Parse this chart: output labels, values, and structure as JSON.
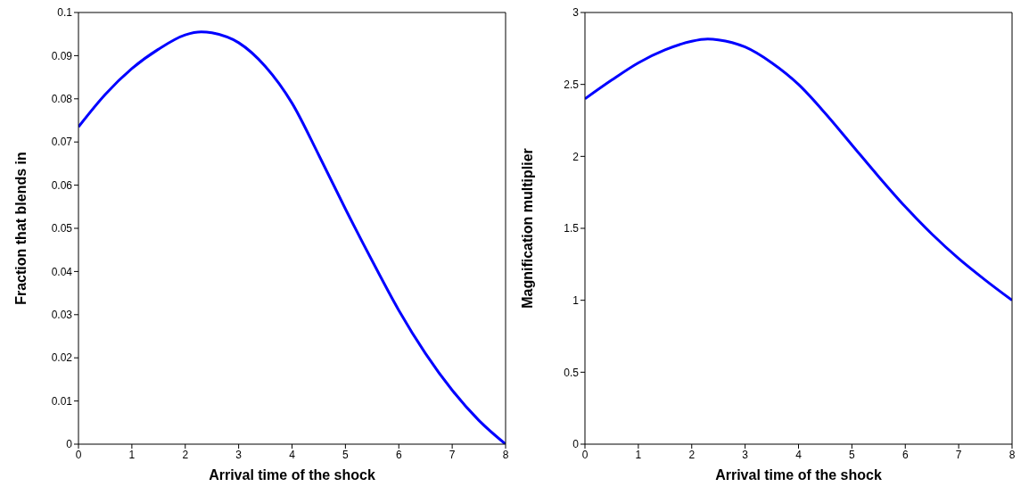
{
  "chart_data": [
    {
      "type": "line",
      "xlabel": "Arrival time of the shock",
      "ylabel": "Fraction that blends in",
      "xlim": [
        0,
        8
      ],
      "xticks": [
        0,
        1,
        2,
        3,
        4,
        5,
        6,
        7,
        8
      ],
      "ylim": [
        0,
        0.1
      ],
      "yticks": [
        0,
        0.01,
        0.02,
        0.03,
        0.04,
        0.05,
        0.06,
        0.07,
        0.08,
        0.09,
        0.1
      ],
      "grid": false,
      "legend": false,
      "marker": "none",
      "line_style": "solid",
      "x": [
        0,
        0.5,
        1,
        1.5,
        2,
        2.3,
        2.5,
        3,
        3.5,
        4,
        4.5,
        5,
        5.5,
        6,
        6.5,
        7,
        7.5,
        8
      ],
      "series": [
        {
          "color": "#0000ff",
          "values": [
            0.0735,
            0.081,
            0.087,
            0.0915,
            0.0948,
            0.0955,
            0.0953,
            0.093,
            0.0875,
            0.079,
            0.067,
            0.0545,
            0.0425,
            0.031,
            0.021,
            0.0125,
            0.0055,
            0
          ]
        }
      ]
    },
    {
      "type": "line",
      "xlabel": "Arrival time of the shock",
      "ylabel": "Magnification multiplier",
      "xlim": [
        0,
        8
      ],
      "xticks": [
        0,
        1,
        2,
        3,
        4,
        5,
        6,
        7,
        8
      ],
      "ylim": [
        0,
        3
      ],
      "yticks": [
        0,
        0.5,
        1,
        1.5,
        2,
        2.5,
        3
      ],
      "grid": false,
      "legend": false,
      "marker": "none",
      "line_style": "solid",
      "x": [
        0,
        0.5,
        1,
        1.5,
        2,
        2.3,
        2.5,
        3,
        3.5,
        4,
        4.5,
        5,
        5.5,
        6,
        6.5,
        7,
        7.5,
        8
      ],
      "series": [
        {
          "color": "#0000ff",
          "values": [
            2.4,
            2.53,
            2.65,
            2.74,
            2.8,
            2.815,
            2.81,
            2.76,
            2.65,
            2.5,
            2.3,
            2.08,
            1.86,
            1.65,
            1.46,
            1.29,
            1.14,
            1.0
          ]
        }
      ]
    }
  ]
}
